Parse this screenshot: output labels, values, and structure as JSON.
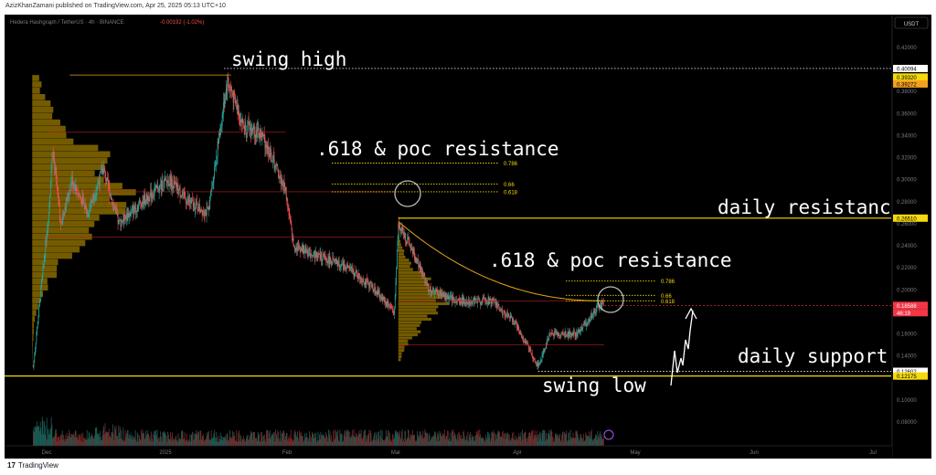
{
  "header": {
    "published_line": "AzizKhanZamani published on TradingView.com, Apr 25, 2025 05:13 UTC+10",
    "symbol_line": "Hedera Hashgraph / TetherUS · 4h · BINANCE",
    "change": "-0.00192 (-1.02%)",
    "currency": "USDT"
  },
  "footer": {
    "brand": "TradingView",
    "logo_icon": "tradingview-logo-icon"
  },
  "colors": {
    "background": "#000000",
    "up_candle": "#26a69a",
    "down_candle": "#ef5350",
    "fib_level": "#f5d90a",
    "volume_profile": "#d4a600",
    "price_line": "#e8a317",
    "current_price": "#f23645",
    "text": "#ffffff"
  },
  "annotations": {
    "swing_high": "swing high",
    "poc_resistance_1": ".618 &  poc resistance",
    "poc_resistance_2": ".618 &  poc resistance",
    "daily_resistance": "daily resistance",
    "daily_support": "daily support",
    "swing_low": "swing low"
  },
  "fib_labels": {
    "set1": [
      "0.786",
      "0.66",
      "0.618"
    ],
    "set2": [
      "0.786",
      "0.66",
      "0.618"
    ]
  },
  "price_badges": {
    "swing_high": "0.40094",
    "a": "0.39320",
    "b": "0.39272",
    "daily_resistance": "0.26510",
    "current": "0.18588",
    "countdown": "46:19",
    "c": "0.12602",
    "d": "0.12175"
  },
  "chart_data": {
    "type": "candlestick",
    "title": "Hedera Hashgraph / TetherUS · 4h · BINANCE",
    "y_ticks": [
      "0.42000",
      "0.40000",
      "0.38000",
      "0.36000",
      "0.34000",
      "0.32000",
      "0.30000",
      "0.28000",
      "0.26000",
      "0.24000",
      "0.22000",
      "0.20000",
      "0.18000",
      "0.16000",
      "0.14000",
      "0.12000",
      "0.10000",
      "0.08000"
    ],
    "x_ticks": [
      "Dec",
      "2025",
      "Feb",
      "Mar",
      "Apr",
      "May",
      "Jun",
      "Jul"
    ],
    "price_path": [
      {
        "t": "Nov 28",
        "p": 0.13
      },
      {
        "t": "Dec 2",
        "p": 0.27
      },
      {
        "t": "Dec 3",
        "p": 0.33
      },
      {
        "t": "Dec 5",
        "p": 0.26
      },
      {
        "t": "Dec 8",
        "p": 0.3
      },
      {
        "t": "Dec 12",
        "p": 0.27
      },
      {
        "t": "Dec 16",
        "p": 0.31
      },
      {
        "t": "Dec 20",
        "p": 0.26
      },
      {
        "t": "Dec 26",
        "p": 0.28
      },
      {
        "t": "Jan 2",
        "p": 0.3
      },
      {
        "t": "Jan 7",
        "p": 0.28
      },
      {
        "t": "Jan 12",
        "p": 0.27
      },
      {
        "t": "Jan 17",
        "p": 0.39
      },
      {
        "t": "Jan 21",
        "p": 0.35
      },
      {
        "t": "Jan 26",
        "p": 0.34
      },
      {
        "t": "Feb 1",
        "p": 0.29
      },
      {
        "t": "Feb 3",
        "p": 0.24
      },
      {
        "t": "Feb 10",
        "p": 0.23
      },
      {
        "t": "Feb 17",
        "p": 0.22
      },
      {
        "t": "Feb 24",
        "p": 0.2
      },
      {
        "t": "Mar 1",
        "p": 0.18
      },
      {
        "t": "Mar 2",
        "p": 0.26
      },
      {
        "t": "Mar 5",
        "p": 0.24
      },
      {
        "t": "Mar 10",
        "p": 0.2
      },
      {
        "t": "Mar 17",
        "p": 0.19
      },
      {
        "t": "Mar 26",
        "p": 0.19
      },
      {
        "t": "Apr 1",
        "p": 0.17
      },
      {
        "t": "Apr 7",
        "p": 0.13
      },
      {
        "t": "Apr 10",
        "p": 0.16
      },
      {
        "t": "Apr 17",
        "p": 0.16
      },
      {
        "t": "Apr 24",
        "p": 0.19
      }
    ],
    "levels": {
      "swing_high": 0.40094,
      "daily_resistance": 0.2651,
      "daily_support": 0.12602,
      "swing_low": 0.12175,
      "current_price": 0.18588,
      "fib1": {
        "0.786": 0.315,
        "0.66": 0.296,
        "0.618": 0.289
      },
      "fib2": {
        "0.786": 0.208,
        "0.66": 0.195,
        "0.618": 0.19
      }
    },
    "grid": false
  }
}
